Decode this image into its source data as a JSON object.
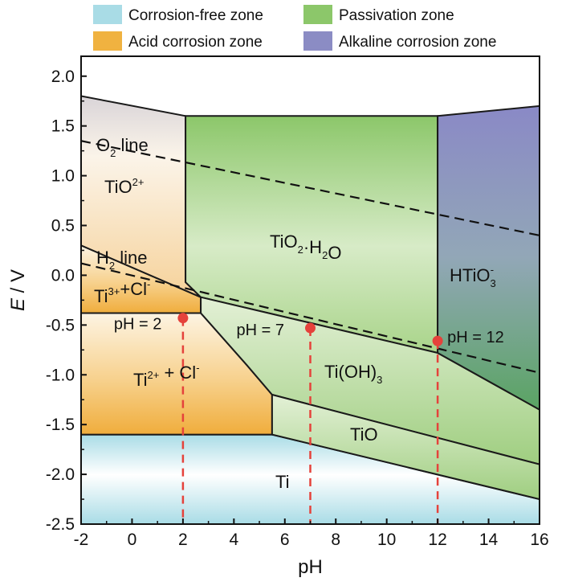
{
  "chart_data": {
    "type": "area",
    "title": "",
    "xlabel": "pH",
    "ylabel_main": "E",
    "ylabel_unit": " / V",
    "xlim": [
      -2,
      16
    ],
    "ylim": [
      -2.5,
      2.2
    ],
    "xticks": [
      -2,
      0,
      2,
      4,
      6,
      8,
      10,
      12,
      14,
      16
    ],
    "xtick_labels": [
      "-2",
      "0",
      "2",
      "4",
      "6",
      "8",
      "10",
      "12",
      "14",
      "16"
    ],
    "yticks": [
      2.0,
      1.5,
      1.0,
      0.5,
      0.0,
      -0.5,
      -1.0,
      -1.5,
      -2.0,
      -2.5
    ],
    "ytick_labels": [
      "2.0",
      "1.5",
      "1.0",
      "0.5",
      "0.0",
      "-0.5",
      "-1.0",
      "-1.5",
      "-2.0",
      "-2.5"
    ],
    "grid": false,
    "legend": {
      "placement": "top",
      "items": [
        {
          "key": "free",
          "label": "Corrosion-free zone",
          "color": "#a9dce6"
        },
        {
          "key": "passivation",
          "label": "Passivation zone",
          "color": "#8cc76a"
        },
        {
          "key": "acid",
          "label": "Acid corrosion zone",
          "color": "#f0b240"
        },
        {
          "key": "alkaline",
          "label": "Alkaline corrosion zone",
          "color": "#8b8cc4"
        }
      ]
    },
    "regions": [
      {
        "key": "ti",
        "zone": "free",
        "label": "Ti",
        "boundary": [
          [
            -2,
            -1.6
          ],
          [
            5.5,
            -1.6
          ],
          [
            16,
            -2.25
          ],
          [
            16,
            -2.5
          ],
          [
            -2,
            -2.5
          ]
        ]
      },
      {
        "key": "ti2",
        "zone": "acid",
        "label": "Ti",
        "label_sup": "2+",
        "label_tail": " + Cl",
        "label_tail_sup": "-",
        "boundary": [
          [
            -2,
            -0.38
          ],
          [
            2.7,
            -0.38
          ],
          [
            4.5,
            -0.9
          ],
          [
            5.5,
            -1.2
          ],
          [
            5.5,
            -1.6
          ],
          [
            -2,
            -1.6
          ]
        ]
      },
      {
        "key": "ti3",
        "zone": "acid",
        "label": "Ti",
        "label_sup": "3+",
        "label_tail": "+Cl",
        "label_tail_sup": "-",
        "boundary": [
          [
            -2,
            0.3
          ],
          [
            2.7,
            -0.22
          ],
          [
            2.7,
            -0.38
          ],
          [
            -2,
            -0.38
          ]
        ]
      },
      {
        "key": "tio2p",
        "zone": "acid",
        "label": "TiO",
        "label_sup": "2+",
        "boundary": [
          [
            -2,
            1.8
          ],
          [
            2.1,
            1.6
          ],
          [
            2.1,
            -0.07
          ],
          [
            2.7,
            -0.22
          ],
          [
            -2,
            0.3
          ]
        ]
      },
      {
        "key": "tio2h2o",
        "zone": "passivation",
        "label": "TiO",
        "label_sub": "2",
        "label_tail": "·H",
        "label_tail_sub": "2",
        "label_end": "O",
        "boundary": [
          [
            2.1,
            1.6
          ],
          [
            12,
            1.6
          ],
          [
            12,
            -0.78
          ],
          [
            2.7,
            -0.22
          ],
          [
            2.1,
            -0.07
          ]
        ]
      },
      {
        "key": "tioh3",
        "zone": "passivation",
        "label": "Ti(OH)",
        "label_sub": "3",
        "boundary": [
          [
            2.7,
            -0.22
          ],
          [
            12,
            -0.78
          ],
          [
            16,
            -1.35
          ],
          [
            16,
            -1.9
          ],
          [
            5.5,
            -1.2
          ],
          [
            4.5,
            -0.9
          ],
          [
            2.7,
            -0.38
          ]
        ]
      },
      {
        "key": "tio",
        "zone": "passivation",
        "label": "TiO",
        "boundary": [
          [
            5.5,
            -1.2
          ],
          [
            16,
            -1.9
          ],
          [
            16,
            -2.25
          ],
          [
            5.5,
            -1.6
          ]
        ]
      },
      {
        "key": "htio3",
        "zone": "alkaline",
        "label": "HTiO",
        "label_sub": "3",
        "label_sup": "-",
        "boundary": [
          [
            12,
            1.6
          ],
          [
            16,
            1.7
          ],
          [
            16,
            -1.35
          ],
          [
            12,
            -0.78
          ]
        ]
      }
    ],
    "lines": [
      {
        "name": "O2 line",
        "label": "O",
        "label_sub": "2",
        "label_tail": " line",
        "style": "dashed",
        "points": [
          [
            -2,
            1.35
          ],
          [
            16,
            0.4
          ]
        ]
      },
      {
        "name": "H2 line",
        "label": "H",
        "label_sub": "2",
        "label_tail": " line",
        "style": "dashed",
        "points": [
          [
            -2,
            0.12
          ],
          [
            16,
            -0.98
          ]
        ]
      }
    ],
    "points": [
      {
        "label": "pH = 2",
        "x": 2,
        "y": -0.43
      },
      {
        "label": "pH = 7",
        "x": 7,
        "y": -0.53
      },
      {
        "label": "pH = 12",
        "x": 12,
        "y": -0.66
      }
    ],
    "colors": {
      "marker": "#e5423b",
      "boundary": "#1a1a1a"
    }
  }
}
